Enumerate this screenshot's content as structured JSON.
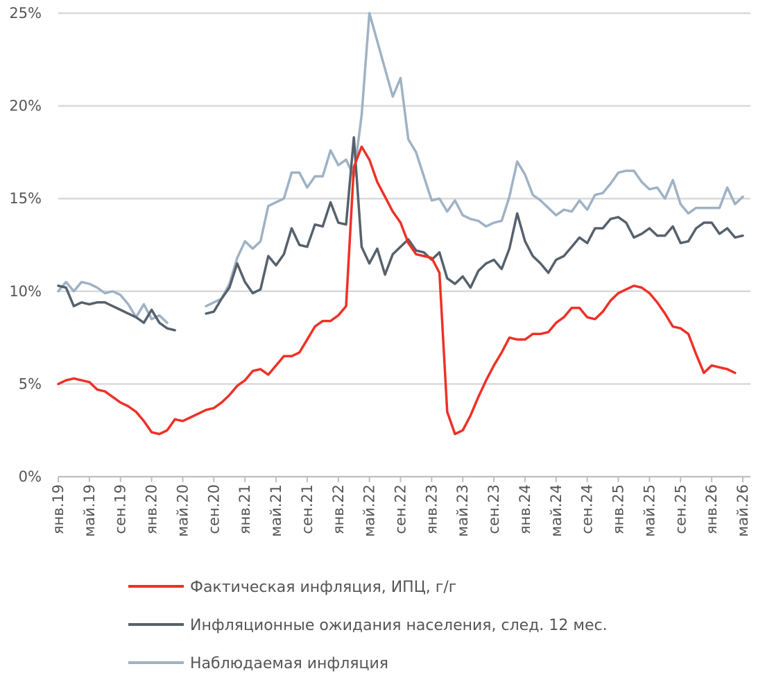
{
  "chart_data": {
    "type": "line",
    "categories": [
      "янв.19",
      null,
      null,
      null,
      "май.19",
      null,
      null,
      null,
      "сен.19",
      null,
      null,
      null,
      "янв.20",
      null,
      null,
      null,
      "май.20",
      null,
      null,
      null,
      "сен.20",
      null,
      null,
      null,
      "янв.21",
      null,
      null,
      null,
      "май.21",
      null,
      null,
      null,
      "сен.21",
      null,
      null,
      null,
      "янв.22",
      null,
      null,
      null,
      "май.22",
      null,
      null,
      null,
      "сен.22",
      null,
      null,
      null,
      "янв.23",
      null,
      null,
      null,
      "май.23",
      null,
      null,
      null,
      "сен.23",
      null,
      null,
      null,
      "янв.24",
      null,
      null,
      null,
      "май.24",
      null,
      null,
      null,
      "сен.24",
      null,
      null,
      null,
      "янв.25",
      null,
      null,
      null,
      "май.25",
      null,
      null,
      null,
      "сен.25",
      null,
      null,
      null,
      "янв.26",
      null,
      null,
      null,
      "май.26"
    ],
    "series": [
      {
        "name": "Фактическая инфляция, ИПЦ, г/г",
        "color": "#ef3026",
        "values": [
          5.0,
          5.2,
          5.3,
          5.2,
          5.1,
          4.7,
          4.6,
          4.3,
          4.0,
          3.8,
          3.5,
          3.0,
          2.4,
          2.3,
          2.5,
          3.1,
          3.0,
          3.2,
          3.4,
          3.6,
          3.7,
          4.0,
          4.4,
          4.9,
          5.2,
          5.7,
          5.8,
          5.5,
          6.0,
          6.5,
          6.5,
          6.7,
          7.4,
          8.1,
          8.4,
          8.4,
          8.7,
          9.2,
          16.7,
          17.8,
          17.1,
          15.9,
          15.1,
          14.3,
          13.7,
          12.6,
          12.0,
          11.9,
          11.8,
          11.0,
          3.5,
          2.3,
          2.5,
          3.3,
          4.3,
          5.2,
          6.0,
          6.7,
          7.5,
          7.4,
          7.4,
          7.7,
          7.7,
          7.8,
          8.3,
          8.6,
          9.1,
          9.1,
          8.6,
          8.5,
          8.9,
          9.5,
          9.9,
          10.1,
          10.3,
          10.2,
          9.9,
          9.4,
          8.8,
          8.1,
          8.0,
          7.7,
          6.6,
          5.6,
          6.0,
          5.9,
          5.8,
          5.6,
          null
        ]
      },
      {
        "name": "Инфляционные ожидания населения, след. 12 мес.",
        "color": "#56616c",
        "values": [
          10.3,
          10.2,
          9.2,
          9.4,
          9.3,
          9.4,
          9.4,
          9.2,
          9.0,
          8.8,
          8.6,
          8.3,
          9.0,
          8.3,
          8.0,
          7.9,
          null,
          null,
          null,
          8.8,
          8.9,
          9.6,
          10.2,
          11.5,
          10.5,
          9.9,
          10.1,
          11.9,
          11.4,
          12.0,
          13.4,
          12.5,
          12.4,
          13.6,
          13.5,
          14.8,
          13.7,
          13.6,
          18.3,
          12.4,
          11.5,
          12.3,
          10.9,
          12.0,
          12.4,
          12.8,
          12.2,
          12.1,
          11.7,
          12.1,
          10.7,
          10.4,
          10.8,
          10.2,
          11.1,
          11.5,
          11.7,
          11.2,
          12.3,
          14.2,
          12.7,
          11.9,
          11.5,
          11.0,
          11.7,
          11.9,
          12.4,
          12.9,
          12.6,
          13.4,
          13.4,
          13.9,
          14.0,
          13.7,
          12.9,
          13.1,
          13.4,
          13.0,
          13.0,
          13.5,
          12.6,
          12.7,
          13.4,
          13.7,
          13.7,
          13.1,
          13.4,
          12.9,
          13.0
        ]
      },
      {
        "name": "Наблюдаемая инфляция",
        "color": "#9fb2c4",
        "values": [
          10.0,
          10.5,
          10.0,
          10.5,
          10.4,
          10.2,
          9.9,
          10.0,
          9.8,
          9.3,
          8.6,
          9.3,
          8.5,
          8.7,
          8.3,
          null,
          null,
          null,
          null,
          9.2,
          9.4,
          9.6,
          10.4,
          11.8,
          12.7,
          12.3,
          12.7,
          14.6,
          14.8,
          15.0,
          16.4,
          16.4,
          15.6,
          16.2,
          16.2,
          17.6,
          16.8,
          17.1,
          16.2,
          19.5,
          25.0,
          23.5,
          22.0,
          20.5,
          21.5,
          18.2,
          17.5,
          16.2,
          14.9,
          15.0,
          14.3,
          14.9,
          14.1,
          13.9,
          13.8,
          13.5,
          13.7,
          13.8,
          15.1,
          17.0,
          16.3,
          15.2,
          14.9,
          14.5,
          14.1,
          14.4,
          14.3,
          14.9,
          14.4,
          15.2,
          15.3,
          15.8,
          16.4,
          16.5,
          16.5,
          15.9,
          15.5,
          15.6,
          15.0,
          16.0,
          14.7,
          14.2,
          14.5,
          14.5,
          14.5,
          14.5,
          15.6,
          14.7,
          15.1
        ]
      }
    ],
    "ylim": [
      0,
      25
    ],
    "yticks": [
      {
        "value": 0,
        "label": "0%"
      },
      {
        "value": 5,
        "label": "5%"
      },
      {
        "value": 10,
        "label": "10%"
      },
      {
        "value": 15,
        "label": "15%"
      },
      {
        "value": 20,
        "label": "20%"
      },
      {
        "value": 25,
        "label": "25%"
      }
    ],
    "grid": true
  }
}
